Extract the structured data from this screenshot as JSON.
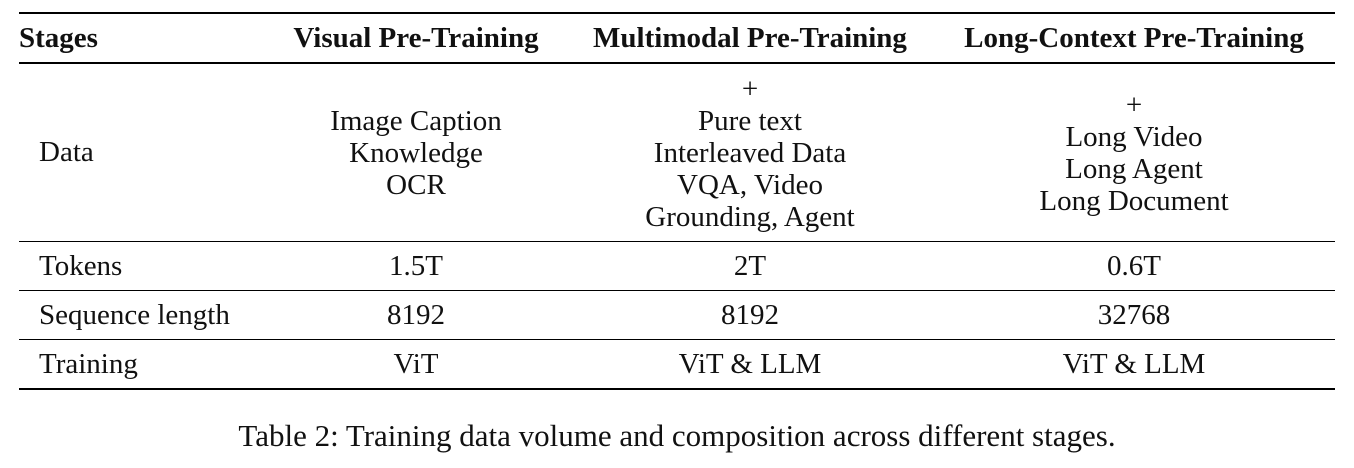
{
  "table": {
    "headers": [
      "Stages",
      "Visual Pre-Training",
      "Multimodal Pre-Training",
      "Long-Context Pre-Training"
    ],
    "data_row": {
      "label": "Data",
      "visual": [
        "Image Caption",
        "Knowledge",
        "OCR"
      ],
      "multimodal": [
        "+",
        "Pure text",
        "Interleaved Data",
        "VQA, Video",
        "Grounding, Agent"
      ],
      "long_context": [
        "+",
        "Long Video",
        "Long Agent",
        "Long Document"
      ]
    },
    "rows": [
      {
        "label": "Tokens",
        "visual": "1.5T",
        "multimodal": "2T",
        "long_context": "0.6T"
      },
      {
        "label": "Sequence length",
        "visual": "8192",
        "multimodal": "8192",
        "long_context": "32768"
      },
      {
        "label": "Training",
        "visual": "ViT",
        "multimodal": "ViT & LLM",
        "long_context": "ViT & LLM"
      }
    ]
  },
  "caption": "Table 2: Training data volume and composition across different stages."
}
